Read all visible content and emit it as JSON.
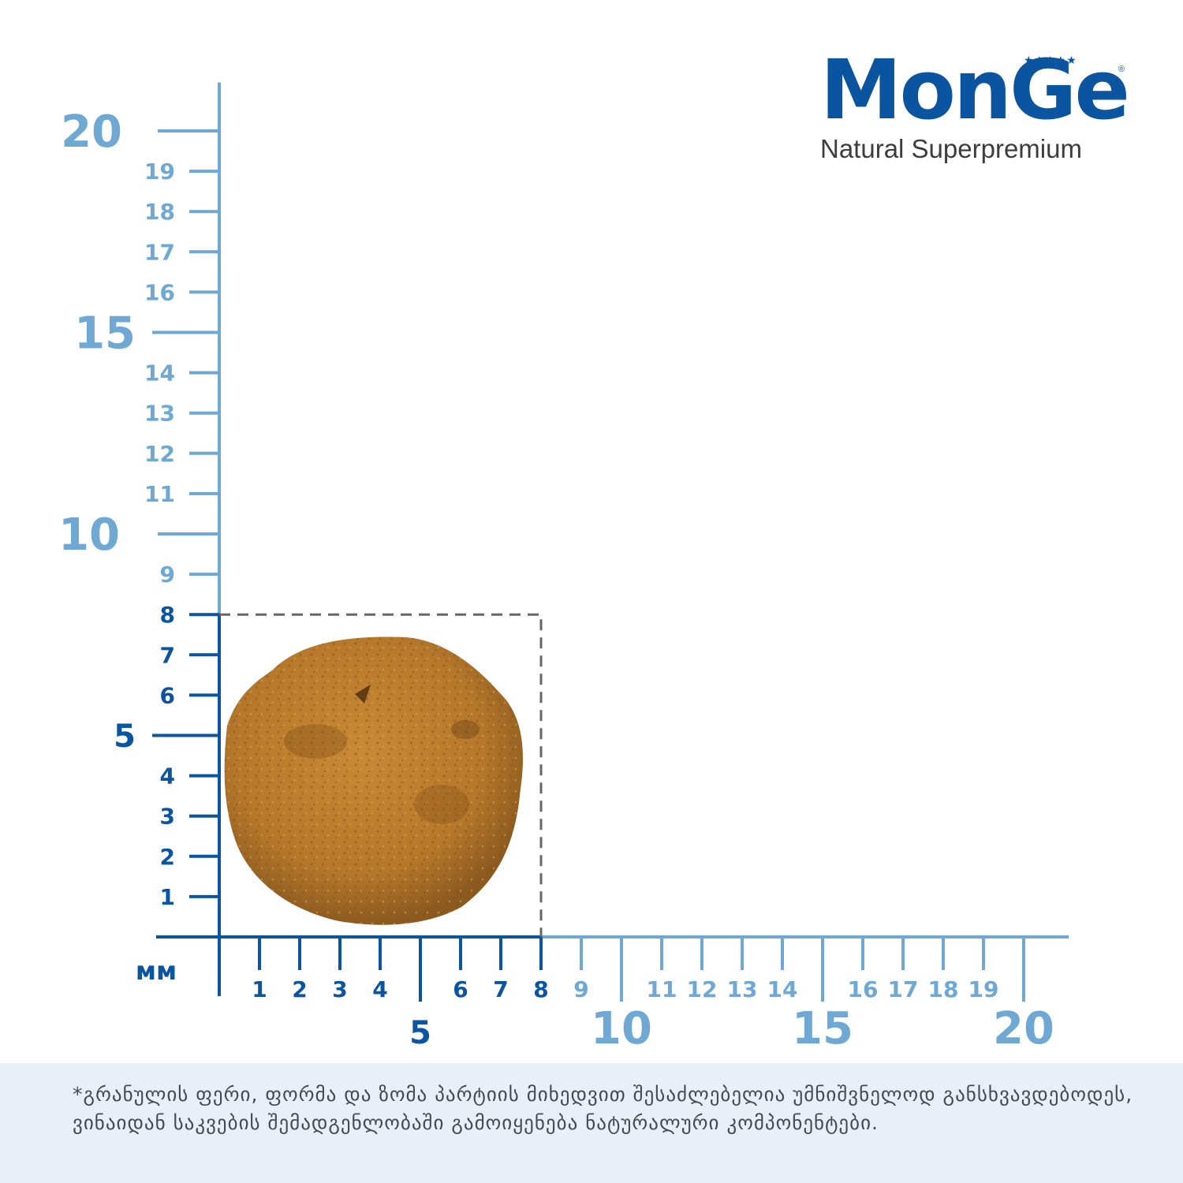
{
  "brand": {
    "name": "MonGe",
    "tagline": "Natural Superpremium",
    "stars": "★★★★★",
    "reg": "®"
  },
  "ruler": {
    "unit_label": "мм",
    "max_mm": 20,
    "kibble_size_mm": 8,
    "colors": {
      "dark_blue": "#0a54a0",
      "light_blue": "#6ea8d3",
      "guide_gray": "#666666",
      "kibble": "#b5782b",
      "kibble_dark": "#7a4a18"
    },
    "vertical_minor_labels": [
      "1",
      "2",
      "3",
      "4",
      "6",
      "7",
      "8",
      "9",
      "11",
      "12",
      "13",
      "14",
      "16",
      "17",
      "18",
      "19"
    ],
    "vertical_major_labels": [
      "5",
      "10",
      "15",
      "20"
    ],
    "horizontal_minor_labels": [
      "1",
      "2",
      "3",
      "4",
      "6",
      "7",
      "8",
      "9",
      "11",
      "12",
      "13",
      "14",
      "16",
      "17",
      "18",
      "19"
    ],
    "horizontal_major_labels": [
      "5",
      "10",
      "15",
      "20"
    ]
  },
  "footer": {
    "note": "*გრანულის ფერი, ფორმა და ზომა პარტიის მიხედვით შესაძლებელია უმნიშვნელოდ განსხვავდებოდეს,  ვინაიდან საკვების შემადგენლობაში გამოიყენება ნატურალური კომპონენტები."
  }
}
